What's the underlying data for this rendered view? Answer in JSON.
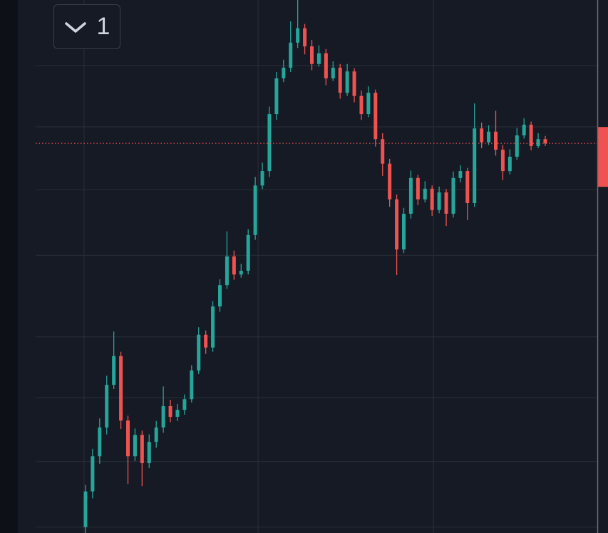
{
  "interval_button": {
    "label": "1"
  },
  "chart_data": {
    "type": "candlestick",
    "up_color": "#26a69a",
    "down_color": "#ef5350",
    "ylim": [
      0,
      100
    ],
    "xlim": [
      -7.05,
      72.36
    ],
    "grid": true,
    "grid_y": [
      87.7,
      76.2,
      64.4,
      52.1,
      36.8,
      25.4,
      13.4,
      1.1
    ],
    "grid_x": [
      -0.2,
      24.4,
      49.2
    ],
    "last_price": 73.1,
    "last_price_color": "#ef5350",
    "open": [
      1.1,
      7.8,
      14.4,
      19.8,
      27.8,
      33.2,
      21.1,
      14.4,
      18.4,
      13.1,
      17.1,
      19.8,
      23.8,
      21.8,
      23.1,
      25.1,
      30.5,
      37.2,
      34.8,
      42.5,
      46.5,
      51.9,
      48.5,
      49.2,
      55.9,
      65.2,
      67.9,
      78.6,
      85.3,
      87.3,
      92.0,
      94.7,
      91.3,
      88.0,
      90.0,
      85.3,
      87.3,
      82.6,
      86.6,
      82.0,
      78.6,
      82.6,
      73.9,
      69.3,
      62.6,
      53.2,
      59.9,
      66.6,
      62.6,
      64.6,
      60.6,
      63.9,
      59.9,
      66.6,
      67.9,
      61.9,
      75.9,
      73.3,
      75.3,
      71.9,
      67.9,
      70.6,
      74.6,
      76.6,
      72.6,
      73.9
    ],
    "high": [
      9.0,
      15.8,
      21.5,
      29.5,
      37.8,
      34.0,
      22.0,
      19.6,
      19.2,
      18.5,
      21.0,
      27.5,
      25.0,
      24.2,
      26.0,
      31.5,
      38.6,
      38.0,
      43.5,
      47.6,
      56.6,
      53.0,
      50.5,
      57.0,
      66.8,
      69.5,
      80.0,
      86.5,
      88.8,
      96.0,
      100,
      95.5,
      92.5,
      91.5,
      90.8,
      88.5,
      88.0,
      88.0,
      87.2,
      83.0,
      83.8,
      83.2,
      75.0,
      70.2,
      63.5,
      61.0,
      68.0,
      67.2,
      66.0,
      65.2,
      65.0,
      64.5,
      67.8,
      69.0,
      68.5,
      80.6,
      77.0,
      76.5,
      79.2,
      72.8,
      72.0,
      76.0,
      77.8,
      77.2,
      75.0,
      74.5
    ],
    "low": [
      0.0,
      6.5,
      13.0,
      18.5,
      27.0,
      19.5,
      9.2,
      13.5,
      8.8,
      12.2,
      16.0,
      18.8,
      20.8,
      21.0,
      22.2,
      24.5,
      29.8,
      33.6,
      34.0,
      41.5,
      45.8,
      47.5,
      47.9,
      48.5,
      55.0,
      64.5,
      66.8,
      77.5,
      84.6,
      86.5,
      91.0,
      89.8,
      86.8,
      87.5,
      84.0,
      84.8,
      81.5,
      82.0,
      80.8,
      77.5,
      78.0,
      72.5,
      67.0,
      61.2,
      48.4,
      52.5,
      59.0,
      61.5,
      62.0,
      59.5,
      60.0,
      57.6,
      59.2,
      65.8,
      58.7,
      61.2,
      72.2,
      72.8,
      70.8,
      66.2,
      67.3,
      70.0,
      74.0,
      71.8,
      72.2,
      72.6
    ],
    "close": [
      7.8,
      14.4,
      19.8,
      27.8,
      33.2,
      21.1,
      14.4,
      18.4,
      13.1,
      17.1,
      19.8,
      23.8,
      21.8,
      23.1,
      25.1,
      30.5,
      37.2,
      34.8,
      42.5,
      46.5,
      51.9,
      48.5,
      49.2,
      55.9,
      65.2,
      67.9,
      78.6,
      85.3,
      87.3,
      92.0,
      94.7,
      91.3,
      88.0,
      90.0,
      85.3,
      87.3,
      82.6,
      86.6,
      82.0,
      78.6,
      82.6,
      73.9,
      69.3,
      62.6,
      53.2,
      59.9,
      66.6,
      62.6,
      64.6,
      60.6,
      63.9,
      59.9,
      66.6,
      67.9,
      61.9,
      75.9,
      73.3,
      75.3,
      71.9,
      67.9,
      70.6,
      74.6,
      76.6,
      72.6,
      73.9,
      73.1
    ]
  }
}
